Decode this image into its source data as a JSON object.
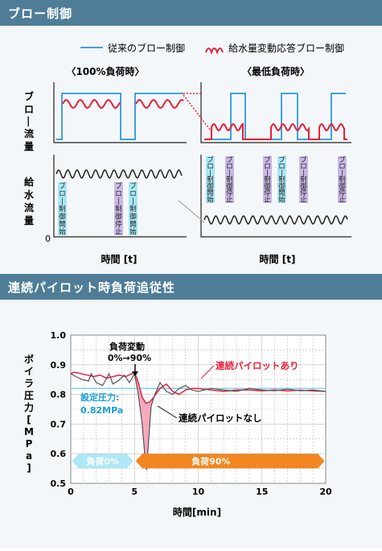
{
  "section1": {
    "title": "ブロー制御",
    "legend": {
      "conventional": "従来のブロー制御",
      "adaptive": "給水量変動応答ブロー制御",
      "conventional_color": "#3fa2dc",
      "adaptive_color": "#e8203a"
    },
    "left_title": "〈100%負荷時〉",
    "right_title": "〈最低負荷時〉",
    "ylabel_blow": "ブロー流量",
    "ylabel_feed": "給水流量",
    "origin": "0",
    "xlabel": "時間 [t]",
    "tag_start": "ブロー制御開始",
    "tag_stop": "ブロー制御停止"
  },
  "section2": {
    "title": "連続パイロット時負荷追従性",
    "ylabel": "ボイラ圧力[MPa]",
    "xlabel": "時間[min]",
    "annot_load_change": "負荷変動",
    "annot_load_change2": "0%→90%",
    "setpoint_label": "設定圧力:",
    "setpoint_value": "0.82MPa",
    "with_pilot": "連続パイロットあり",
    "without_pilot": "連続パイロットなし",
    "load0": "負荷0%",
    "load90": "負荷90%"
  },
  "chart_data": {
    "type": "line",
    "xlabel": "時間[min]",
    "ylabel": "ボイラ圧力[MPa]",
    "xlim": [
      0,
      20
    ],
    "ylim": [
      0.5,
      1.0
    ],
    "xticks": [
      0,
      5,
      10,
      15,
      20
    ],
    "yticks": [
      0.5,
      0.6,
      0.7,
      0.8,
      0.9,
      1.0
    ],
    "grid": true,
    "setpoint": 0.82,
    "series": [
      {
        "name": "連続パイロットあり",
        "color": "#e8203a",
        "x": [
          0,
          0.3,
          0.8,
          1.3,
          1.8,
          2.3,
          2.8,
          3.3,
          3.8,
          4.3,
          4.8,
          5.0,
          5.3,
          5.6,
          5.9,
          6.2,
          6.5,
          7.0,
          7.5,
          8.0,
          8.5,
          9.0,
          9.5,
          10,
          11,
          12,
          13,
          14,
          15,
          16,
          17,
          18,
          19,
          20
        ],
        "y": [
          0.87,
          0.875,
          0.87,
          0.865,
          0.86,
          0.865,
          0.855,
          0.86,
          0.865,
          0.86,
          0.87,
          0.875,
          0.84,
          0.79,
          0.77,
          0.775,
          0.79,
          0.82,
          0.835,
          0.81,
          0.8,
          0.815,
          0.82,
          0.82,
          0.815,
          0.81,
          0.815,
          0.815,
          0.812,
          0.815,
          0.812,
          0.814,
          0.812,
          0.81
        ]
      },
      {
        "name": "連続パイロットなし",
        "color": "#555555",
        "x": [
          0,
          0.4,
          0.9,
          1.4,
          1.6,
          2.0,
          2.5,
          3.0,
          3.3,
          3.7,
          4.2,
          4.6,
          5.0,
          5.3,
          5.6,
          5.8,
          5.95,
          6.1,
          6.3,
          6.6,
          7.0,
          7.5,
          8.0,
          8.5,
          9.0,
          9.5,
          10,
          11,
          12,
          13,
          14,
          15,
          16,
          17,
          18,
          19,
          20
        ],
        "y": [
          0.87,
          0.86,
          0.85,
          0.845,
          0.87,
          0.84,
          0.83,
          0.87,
          0.835,
          0.845,
          0.865,
          0.84,
          0.87,
          0.8,
          0.7,
          0.6,
          0.545,
          0.64,
          0.76,
          0.8,
          0.84,
          0.81,
          0.8,
          0.82,
          0.83,
          0.815,
          0.81,
          0.82,
          0.815,
          0.81,
          0.82,
          0.815,
          0.812,
          0.818,
          0.812,
          0.815,
          0.81
        ]
      }
    ]
  }
}
